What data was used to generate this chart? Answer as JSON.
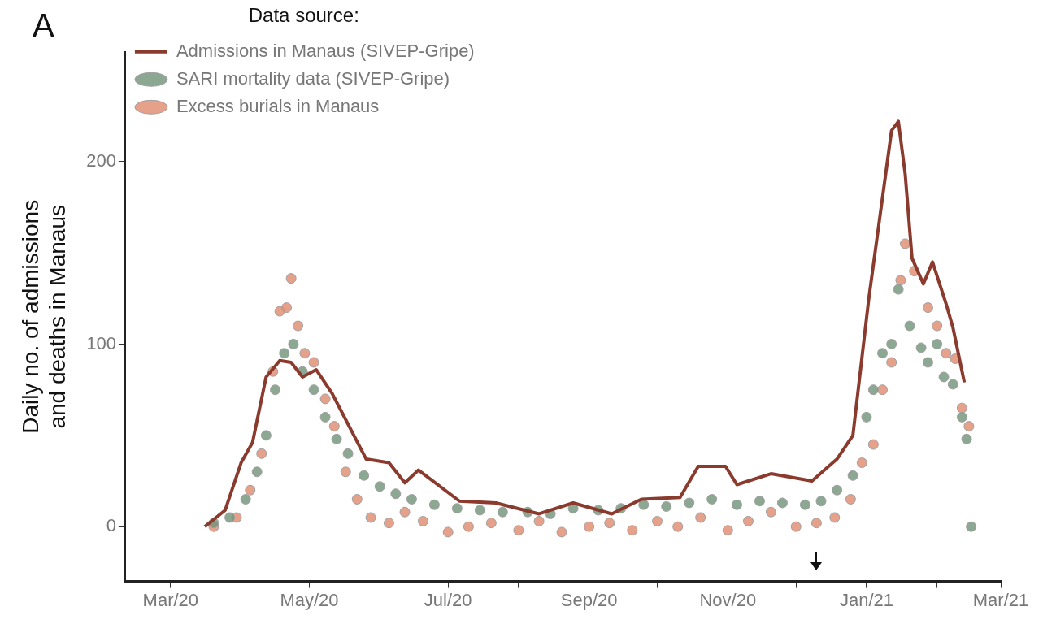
{
  "chart_data": {
    "type": "line",
    "ylabel": "Daily no. of admissions\nand deaths in Manaus",
    "legend_title": "Data source:",
    "legend": "top left",
    "grid": false,
    "annotations": [
      "A"
    ],
    "xlim": [
      "2020-02-10",
      "2021-03-01"
    ],
    "xticks": [
      {
        "value": "2020-03-01",
        "label": "Mar/20"
      },
      {
        "value": "2020-04-01",
        "label": null
      },
      {
        "value": "2020-05-01",
        "label": "May/20"
      },
      {
        "value": "2020-06-01",
        "label": null
      },
      {
        "value": "2020-07-01",
        "label": "Jul/20"
      },
      {
        "value": "2020-08-01",
        "label": null
      },
      {
        "value": "2020-09-01",
        "label": "Sep/20"
      },
      {
        "value": "2020-10-01",
        "label": null
      },
      {
        "value": "2020-11-01",
        "label": "Nov/20"
      },
      {
        "value": "2020-12-01",
        "label": null
      },
      {
        "value": "2021-01-01",
        "label": "Jan/21"
      },
      {
        "value": "2021-02-01",
        "label": null
      },
      {
        "value": "2021-03-01",
        "label": "Mar/21"
      }
    ],
    "ylim": [
      -30,
      260
    ],
    "yticks": [
      0,
      100,
      200
    ],
    "series": [
      {
        "name": "Admissions in Manaus (SIVEP-Gripe)",
        "color": "#8b3a2e",
        "x": [
          "2020-03-16",
          "2020-03-25",
          "2020-04-01",
          "2020-04-06",
          "2020-04-12",
          "2020-04-18",
          "2020-04-23",
          "2020-04-28",
          "2020-05-04",
          "2020-05-11",
          "2020-05-26",
          "2020-06-05",
          "2020-06-12",
          "2020-06-18",
          "2020-07-06",
          "2020-07-22",
          "2020-08-10",
          "2020-08-25",
          "2020-09-11",
          "2020-09-24",
          "2020-10-11",
          "2020-10-19",
          "2020-10-31",
          "2020-11-05",
          "2020-11-20",
          "2020-12-08",
          "2020-12-19",
          "2020-12-26",
          "2021-01-02",
          "2021-01-07",
          "2021-01-12",
          "2021-01-15",
          "2021-01-18",
          "2021-01-21",
          "2021-01-26",
          "2021-01-30",
          "2021-02-05",
          "2021-02-08",
          "2021-02-13"
        ],
        "values": [
          0,
          9,
          35,
          46,
          82,
          91,
          90,
          82,
          86,
          73,
          37,
          35,
          24,
          31,
          14,
          13,
          7,
          13,
          7,
          15,
          16,
          33,
          33,
          23,
          29,
          25,
          37,
          50,
          125,
          171,
          217,
          222,
          193,
          147,
          133,
          145,
          122,
          109,
          79
        ]
      },
      {
        "name": "SARI mortality data (SIVEP-Gripe)",
        "type": "scatter",
        "color": "#6f9278",
        "x": [
          "2020-03-20",
          "2020-03-27",
          "2020-04-03",
          "2020-04-08",
          "2020-04-12",
          "2020-04-16",
          "2020-04-20",
          "2020-04-24",
          "2020-04-28",
          "2020-05-03",
          "2020-05-08",
          "2020-05-13",
          "2020-05-18",
          "2020-05-25",
          "2020-06-01",
          "2020-06-08",
          "2020-06-15",
          "2020-06-25",
          "2020-07-05",
          "2020-07-15",
          "2020-07-25",
          "2020-08-05",
          "2020-08-15",
          "2020-08-25",
          "2020-09-05",
          "2020-09-15",
          "2020-09-25",
          "2020-10-05",
          "2020-10-15",
          "2020-10-25",
          "2020-11-05",
          "2020-11-15",
          "2020-11-25",
          "2020-12-05",
          "2020-12-12",
          "2020-12-19",
          "2020-12-26",
          "2021-01-01",
          "2021-01-04",
          "2021-01-08",
          "2021-01-12",
          "2021-01-15",
          "2021-01-20",
          "2021-01-25",
          "2021-01-28",
          "2021-02-01",
          "2021-02-04",
          "2021-02-08",
          "2021-02-12",
          "2021-02-14",
          "2021-02-16"
        ],
        "values": [
          2,
          5,
          15,
          30,
          50,
          75,
          95,
          100,
          85,
          75,
          60,
          48,
          40,
          28,
          22,
          18,
          15,
          12,
          10,
          9,
          8,
          8,
          7,
          10,
          9,
          10,
          12,
          11,
          13,
          15,
          12,
          14,
          13,
          12,
          14,
          20,
          28,
          60,
          75,
          95,
          100,
          130,
          110,
          98,
          90,
          100,
          82,
          78,
          60,
          48,
          0
        ]
      },
      {
        "name": "Excess burials in Manaus",
        "type": "scatter",
        "color": "#e08a6e",
        "x": [
          "2020-03-20",
          "2020-03-30",
          "2020-04-05",
          "2020-04-10",
          "2020-04-15",
          "2020-04-18",
          "2020-04-21",
          "2020-04-23",
          "2020-04-26",
          "2020-04-29",
          "2020-05-03",
          "2020-05-08",
          "2020-05-12",
          "2020-05-17",
          "2020-05-22",
          "2020-05-28",
          "2020-06-05",
          "2020-06-12",
          "2020-06-20",
          "2020-07-01",
          "2020-07-10",
          "2020-07-20",
          "2020-08-01",
          "2020-08-10",
          "2020-08-20",
          "2020-09-01",
          "2020-09-10",
          "2020-09-20",
          "2020-10-01",
          "2020-10-10",
          "2020-10-20",
          "2020-11-01",
          "2020-11-10",
          "2020-11-20",
          "2020-12-01",
          "2020-12-10",
          "2020-12-18",
          "2020-12-25",
          "2020-12-30",
          "2021-01-04",
          "2021-01-08",
          "2021-01-12",
          "2021-01-16",
          "2021-01-18",
          "2021-01-22",
          "2021-01-28",
          "2021-02-01",
          "2021-02-05",
          "2021-02-09",
          "2021-02-12",
          "2021-02-15"
        ],
        "values": [
          0,
          5,
          20,
          40,
          85,
          118,
          120,
          136,
          110,
          95,
          90,
          70,
          55,
          30,
          15,
          5,
          2,
          8,
          3,
          -3,
          0,
          2,
          -2,
          3,
          -3,
          0,
          2,
          -2,
          3,
          0,
          5,
          -2,
          3,
          8,
          0,
          2,
          5,
          15,
          35,
          45,
          75,
          90,
          135,
          155,
          140,
          120,
          110,
          95,
          92,
          65,
          55
        ]
      }
    ]
  }
}
